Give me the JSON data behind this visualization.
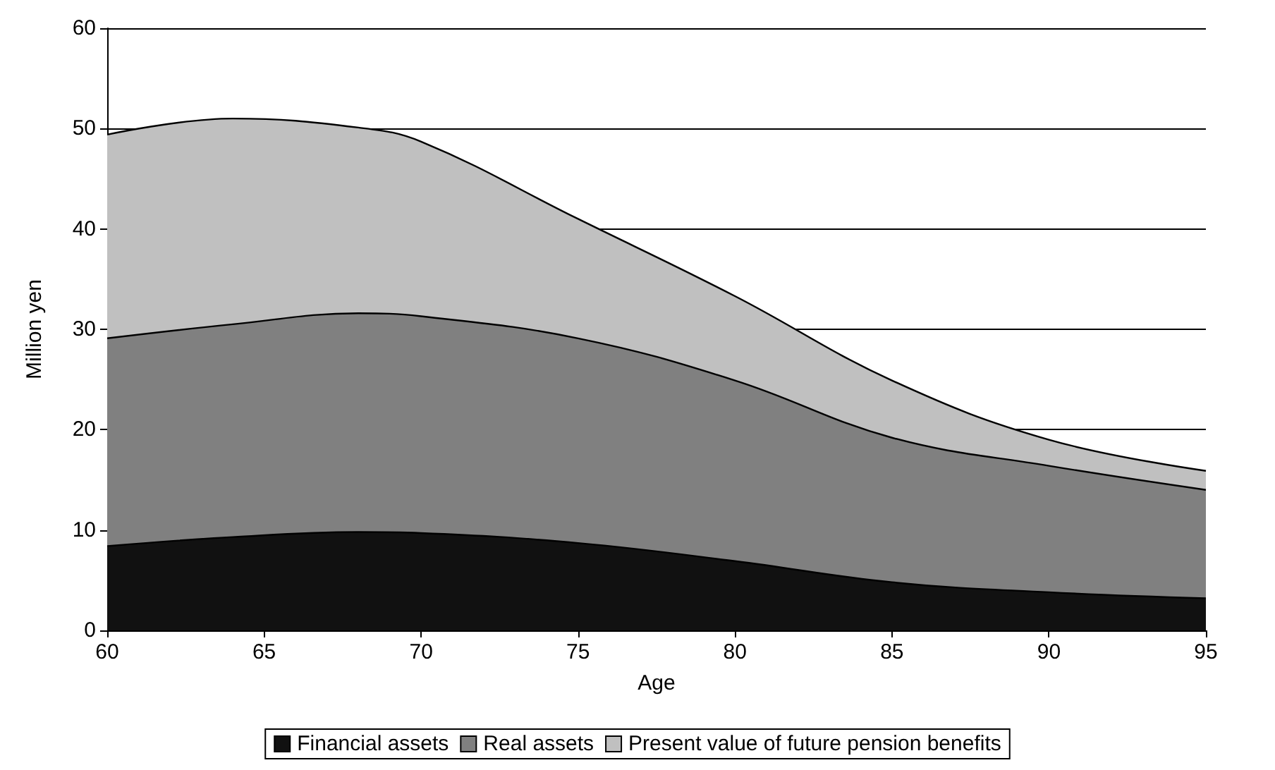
{
  "chart_data": {
    "type": "area",
    "stacked": true,
    "xlabel": "Age",
    "ylabel": "Million yen",
    "x": [
      60,
      64,
      68,
      70,
      75,
      80,
      85,
      90,
      95
    ],
    "series": [
      {
        "name": "Financial assets",
        "color": "#111111",
        "values": [
          8.4,
          9.3,
          9.8,
          9.7,
          8.7,
          6.9,
          4.8,
          3.8,
          3.2
        ]
      },
      {
        "name": "Real assets",
        "color": "#808080",
        "values": [
          20.7,
          21.2,
          21.8,
          21.6,
          20.4,
          18.0,
          14.4,
          12.6,
          10.8
        ]
      },
      {
        "name": "Present value of future pension benefits",
        "color": "#c0c0c0",
        "values": [
          20.3,
          20.5,
          18.5,
          17.4,
          11.9,
          8.4,
          5.7,
          2.6,
          1.9
        ]
      }
    ],
    "xlim": [
      60,
      95
    ],
    "xticks": [
      60,
      65,
      70,
      75,
      80,
      85,
      90,
      95
    ],
    "ylim": [
      0,
      60
    ],
    "yticks": [
      0,
      10,
      20,
      30,
      40,
      50,
      60
    ],
    "grid": "y",
    "legend": "bottom"
  }
}
